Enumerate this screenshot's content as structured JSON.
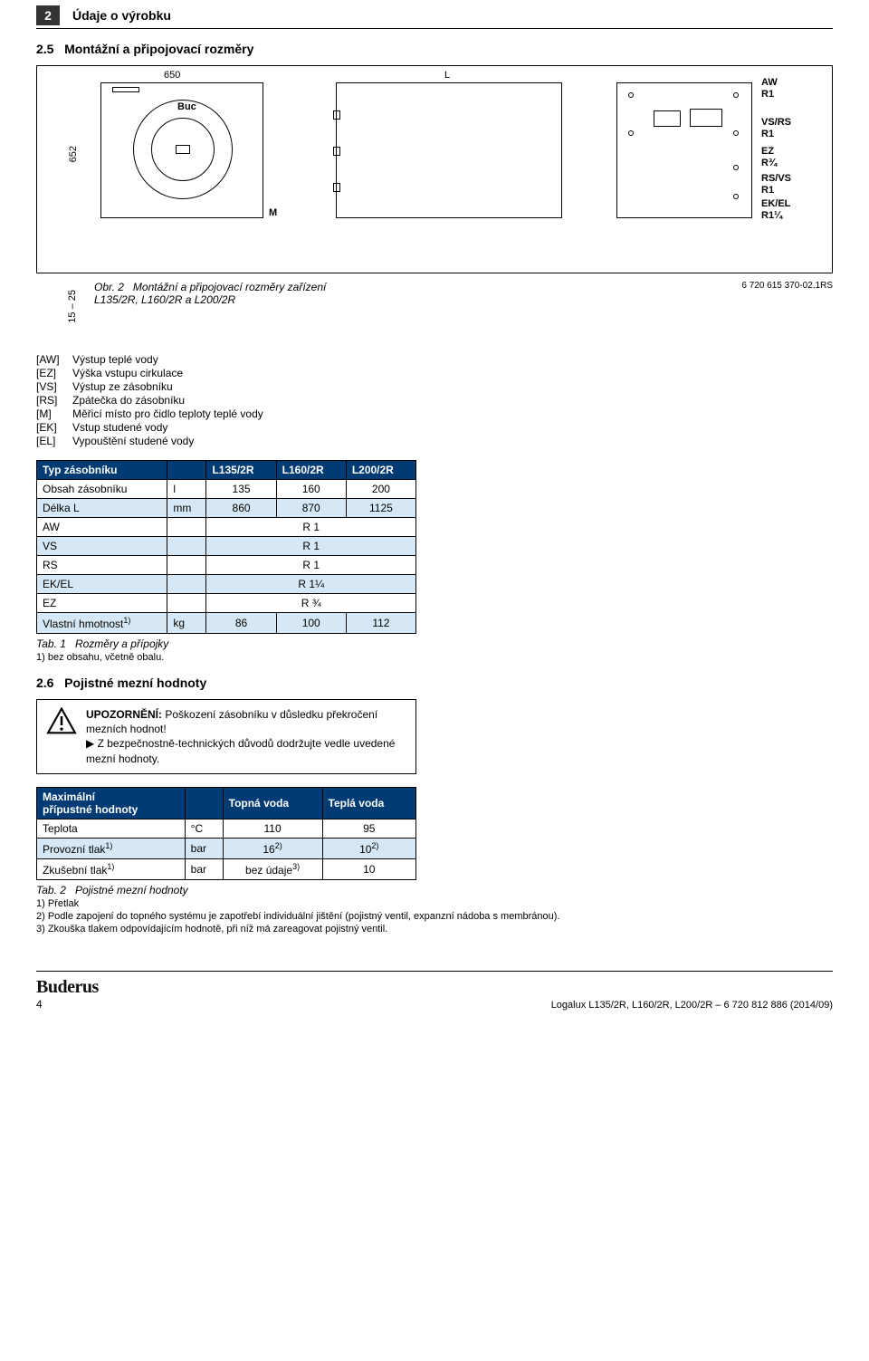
{
  "header": {
    "page_number": "2",
    "title": "Údaje o výrobku"
  },
  "section25": {
    "number": "2.5",
    "title": "Montážní a připojovací rozměry"
  },
  "figure": {
    "img_ref": "6 720 615 370-02.1RS",
    "dim_650": "650",
    "dim_L": "L",
    "dim_652": "652",
    "label_M": "M",
    "label_Buc": "Buc",
    "height_label": "15 – 25",
    "conn": {
      "aw": "AW\nR1",
      "vsrs": "VS/RS\nR1",
      "ez": "EZ\nR¾",
      "rsvs": "RS/VS\nR1",
      "ekel": "EK/EL\nR1¼"
    },
    "caption_prefix": "Obr. 2",
    "caption": "Montážní a připojovací rozměry zařízení L135/2R, L160/2R a L200/2R"
  },
  "legend": [
    {
      "key": "[AW]",
      "text": "Výstup teplé vody"
    },
    {
      "key": "[EZ]",
      "text": "Výška vstupu cirkulace"
    },
    {
      "key": "[VS]",
      "text": "Výstup ze zásobníku"
    },
    {
      "key": "[RS]",
      "text": "Zpátečka do zásobníku"
    },
    {
      "key": "[M]",
      "text": "Měřicí místo pro čidlo teploty teplé vody"
    },
    {
      "key": "[EK]",
      "text": "Vstup studené vody"
    },
    {
      "key": "[EL]",
      "text": "Vypouštění studené vody"
    }
  ],
  "table1": {
    "head": [
      "Typ zásobníku",
      "",
      "L135/2R",
      "L160/2R",
      "L200/2R"
    ],
    "rows": [
      {
        "alt": false,
        "cells": [
          "Obsah zásobníku",
          "l",
          "135",
          "160",
          "200"
        ]
      },
      {
        "alt": true,
        "cells": [
          "Délka L",
          "mm",
          "860",
          "870",
          "1125"
        ]
      },
      {
        "alt": false,
        "cells": [
          "AW",
          "",
          "R 1"
        ],
        "span3": true
      },
      {
        "alt": true,
        "cells": [
          "VS",
          "",
          "R 1"
        ],
        "span3": true
      },
      {
        "alt": false,
        "cells": [
          "RS",
          "",
          "R 1"
        ],
        "span3": true
      },
      {
        "alt": true,
        "cells": [
          "EK/EL",
          "",
          "R 1¼"
        ],
        "span3": true
      },
      {
        "alt": false,
        "cells": [
          "EZ",
          "",
          "R ¾"
        ],
        "span3": true
      },
      {
        "alt": true,
        "cells": [
          "Vlastní hmotnost",
          "kg",
          "86",
          "100",
          "112"
        ],
        "sup": "1)"
      }
    ],
    "caption_prefix": "Tab. 1",
    "caption": "Rozměry a přípojky",
    "footnote": "1) bez obsahu, včetně obalu."
  },
  "section26": {
    "number": "2.6",
    "title": "Pojistné mezní hodnoty"
  },
  "notice": {
    "strong": "UPOZORNĚNÍ:",
    "line1": "Poškození zásobníku v důsledku překročení mezních hodnot!",
    "line2": "Z bezpečnostně-technických důvodů dodržujte vedle uvedené mezní hodnoty."
  },
  "table2": {
    "head": [
      "Maximální\npřípustné hodnoty",
      "",
      "Topná voda",
      "Teplá voda"
    ],
    "rows": [
      {
        "alt": false,
        "cells": [
          "Teplota",
          "°C",
          "110",
          "95"
        ]
      },
      {
        "alt": true,
        "label": "Provozní tlak",
        "sup": "1)",
        "unit": "bar",
        "c3": "16",
        "c3sup": "2)",
        "c4": "10",
        "c4sup": "2)"
      },
      {
        "alt": false,
        "label": "Zkušební tlak",
        "sup": "1)",
        "unit": "bar",
        "c3": "bez údaje",
        "c3sup": "3)",
        "c4": "10"
      }
    ],
    "caption_prefix": "Tab. 2",
    "caption": "Pojistné mezní hodnoty",
    "footnotes": [
      "1) Přetlak",
      "2) Podle zapojení do topného systému je zapotřebí individuální jištění (pojistný ventil, expanzní nádoba s membránou).",
      "3) Zkouška tlakem odpovídajícím hodnotě, při níž má zareagovat pojistný ventil."
    ]
  },
  "footer": {
    "brand": "Buderus",
    "page": "4",
    "doc": "Logalux L135/2R, L160/2R, L200/2R – 6 720 812 886 (2014/09)"
  },
  "colors": {
    "header_bg": "#003b73",
    "row_alt": "#d6e8f5"
  }
}
